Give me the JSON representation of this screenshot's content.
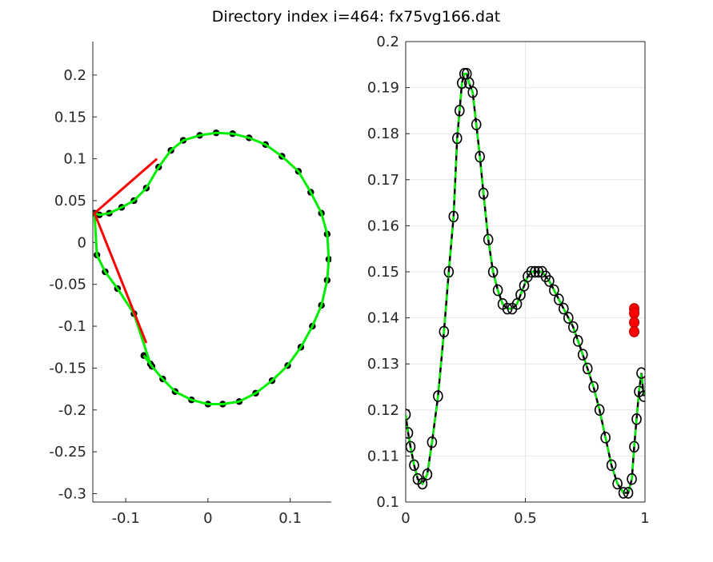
{
  "title": "Directory index i=464: fx75vg166.dat",
  "chart_data": [
    {
      "type": "line",
      "panel": "left",
      "grid": false,
      "xlim": [
        -0.14,
        0.15
      ],
      "ylim": [
        -0.31,
        0.24
      ],
      "xticks": [
        -0.1,
        0,
        0.1
      ],
      "xtick_labels": [
        "-0.1",
        "0",
        "0.1"
      ],
      "yticks": [
        0.2,
        0.15,
        0.1,
        0.05,
        0,
        -0.05,
        -0.1,
        -0.15,
        -0.2,
        -0.25,
        -0.3
      ],
      "ytick_labels": [
        "0.2",
        "0.15",
        "0.1",
        "0.05",
        "0",
        "-0.05",
        "-0.1",
        "-0.15",
        "-0.2",
        "-0.25",
        "-0.3"
      ],
      "series": [
        {
          "style": "black dots + green curve",
          "color_markers": "#000000",
          "color_line": "#00ee00",
          "x": [
            -0.07,
            -0.09,
            -0.11,
            -0.125,
            -0.135,
            -0.138,
            -0.132,
            -0.12,
            -0.105,
            -0.09,
            -0.075,
            -0.06,
            -0.045,
            -0.03,
            -0.01,
            0.01,
            0.03,
            0.05,
            0.07,
            0.09,
            0.11,
            0.125,
            0.138,
            0.145,
            0.147,
            0.145,
            0.138,
            0.127,
            0.113,
            0.097,
            0.078,
            0.058,
            0.038,
            0.018,
            0.0,
            -0.02,
            -0.04,
            -0.055,
            -0.068,
            -0.078
          ],
          "y": [
            -0.145,
            -0.085,
            -0.055,
            -0.035,
            -0.015,
            0.035,
            0.033,
            0.035,
            0.042,
            0.05,
            0.065,
            0.09,
            0.11,
            0.122,
            0.128,
            0.131,
            0.13,
            0.125,
            0.117,
            0.103,
            0.085,
            0.06,
            0.035,
            0.01,
            -0.02,
            -0.045,
            -0.075,
            -0.1,
            -0.125,
            -0.147,
            -0.165,
            -0.18,
            -0.19,
            -0.193,
            -0.193,
            -0.188,
            -0.178,
            -0.163,
            -0.148,
            -0.135
          ]
        },
        {
          "style": "red segments",
          "color_line": "#ff0000",
          "x": [
            -0.062,
            -0.138,
            -0.075
          ],
          "y": [
            0.1,
            0.035,
            -0.12
          ]
        }
      ]
    },
    {
      "type": "line",
      "panel": "right",
      "grid": true,
      "xlim": [
        0,
        1
      ],
      "ylim": [
        0.1,
        0.2
      ],
      "xticks": [
        0,
        0.5,
        1
      ],
      "xtick_labels": [
        "0",
        "0.5",
        "1"
      ],
      "yticks": [
        0.2,
        0.19,
        0.18,
        0.17,
        0.16,
        0.15,
        0.14,
        0.13,
        0.12,
        0.11,
        0.1
      ],
      "ytick_labels": [
        "0.2",
        "0.19",
        "0.18",
        "0.17",
        "0.16",
        "0.15",
        "0.14",
        "0.13",
        "0.12",
        "0.11",
        "0.1"
      ],
      "series": [
        {
          "style": "black open circles on black line with green dashes",
          "color_markers": "#000000",
          "color_line": "#000000",
          "color_dash": "#00ee00",
          "x": [
            0.0,
            0.01,
            0.02,
            0.035,
            0.05,
            0.07,
            0.09,
            0.11,
            0.135,
            0.16,
            0.18,
            0.2,
            0.215,
            0.225,
            0.235,
            0.245,
            0.255,
            0.265,
            0.28,
            0.295,
            0.31,
            0.325,
            0.345,
            0.365,
            0.385,
            0.405,
            0.425,
            0.445,
            0.465,
            0.48,
            0.495,
            0.51,
            0.525,
            0.54,
            0.555,
            0.57,
            0.585,
            0.6,
            0.62,
            0.64,
            0.66,
            0.68,
            0.7,
            0.72,
            0.74,
            0.76,
            0.785,
            0.81,
            0.835,
            0.86,
            0.885,
            0.91,
            0.93,
            0.945,
            0.955,
            0.965,
            0.975,
            0.985,
            0.995
          ],
          "y": [
            0.119,
            0.115,
            0.112,
            0.108,
            0.105,
            0.104,
            0.106,
            0.113,
            0.123,
            0.137,
            0.15,
            0.162,
            0.179,
            0.185,
            0.191,
            0.193,
            0.193,
            0.191,
            0.189,
            0.182,
            0.175,
            0.167,
            0.157,
            0.15,
            0.146,
            0.143,
            0.142,
            0.142,
            0.143,
            0.145,
            0.147,
            0.149,
            0.15,
            0.15,
            0.15,
            0.15,
            0.149,
            0.148,
            0.146,
            0.144,
            0.142,
            0.14,
            0.138,
            0.135,
            0.132,
            0.129,
            0.125,
            0.12,
            0.114,
            0.108,
            0.104,
            0.102,
            0.102,
            0.105,
            0.112,
            0.118,
            0.124,
            0.128,
            0.123
          ]
        },
        {
          "style": "red filled markers",
          "color_markers": "#ff0000",
          "x": [
            0.955,
            0.955,
            0.955,
            0.955
          ],
          "y": [
            0.142,
            0.141,
            0.139,
            0.137
          ]
        }
      ]
    }
  ]
}
